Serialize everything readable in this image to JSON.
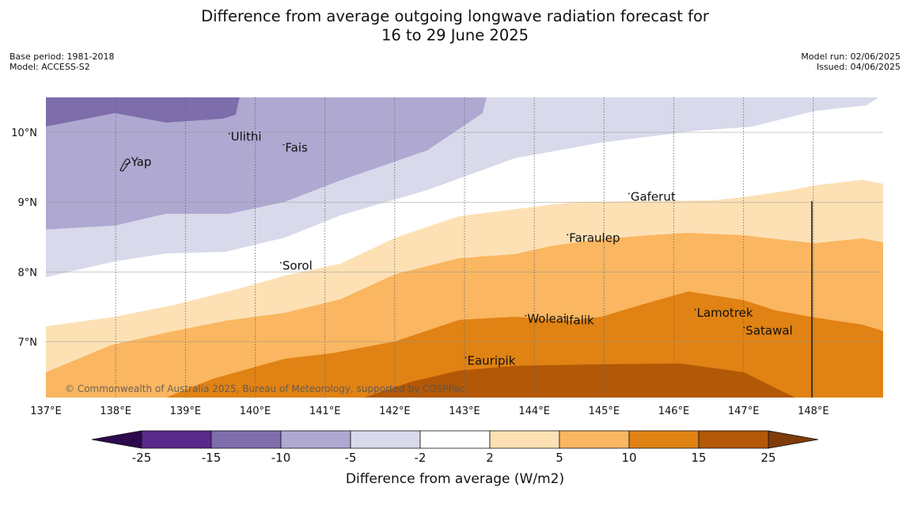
{
  "title": {
    "line1": "Difference from average outgoing longwave radiation forecast for",
    "line2": "16 to 29 June 2025"
  },
  "meta": {
    "base_period": "Base period: 1981-2018",
    "model": "Model: ACCESS-S2",
    "model_run": "Model run: 02/06/2025",
    "issued": "Issued: 04/06/2025"
  },
  "map": {
    "lat_range": [
      6.2,
      10.5
    ],
    "lon_range": [
      137.0,
      149.0
    ],
    "lon_ticks": [
      {
        "value": 137,
        "label": "137°E"
      },
      {
        "value": 138,
        "label": "138°E"
      },
      {
        "value": 139,
        "label": "139°E"
      },
      {
        "value": 140,
        "label": "140°E"
      },
      {
        "value": 141,
        "label": "141°E"
      },
      {
        "value": 142,
        "label": "142°E"
      },
      {
        "value": 143,
        "label": "143°E"
      },
      {
        "value": 144,
        "label": "144°E"
      },
      {
        "value": 145,
        "label": "145°E"
      },
      {
        "value": 146,
        "label": "146°E"
      },
      {
        "value": 147,
        "label": "147°E"
      },
      {
        "value": 148,
        "label": "148°E"
      }
    ],
    "lat_ticks": [
      {
        "value": 10,
        "label": "10°N"
      },
      {
        "value": 9,
        "label": "9°N"
      },
      {
        "value": 8,
        "label": "8°N"
      },
      {
        "value": 7,
        "label": "7°N"
      }
    ],
    "places": [
      {
        "name": "Yap",
        "lon": 138.22,
        "lat": 9.52
      },
      {
        "name": "Ulithi",
        "lon": 139.65,
        "lat": 9.88
      },
      {
        "name": "Fais",
        "lon": 140.43,
        "lat": 9.72
      },
      {
        "name": "Sorol",
        "lon": 140.39,
        "lat": 8.03
      },
      {
        "name": "Gaferut",
        "lon": 145.38,
        "lat": 9.02
      },
      {
        "name": "Faraulep",
        "lon": 144.5,
        "lat": 8.43
      },
      {
        "name": "Woleai",
        "lon": 143.9,
        "lat": 7.27
      },
      {
        "name": "Ifalik",
        "lon": 144.45,
        "lat": 7.25
      },
      {
        "name": "Lamotrek",
        "lon": 146.33,
        "lat": 7.36
      },
      {
        "name": "Satawal",
        "lon": 147.03,
        "lat": 7.1
      },
      {
        "name": "Eauripik",
        "lon": 143.04,
        "lat": 6.67
      }
    ],
    "credit": "© Commonwealth of Australia 2025, Bureau of Meteorology, supported by COSPPac"
  },
  "colorbar": {
    "title": "Difference from average (W/m2)",
    "tick_labels": [
      "-25",
      "-15",
      "-10",
      "-5",
      "-2",
      "2",
      "5",
      "10",
      "15",
      "25"
    ],
    "colors": {
      "below_min": "#2d0a4e",
      "bins": [
        "#5a2a8a",
        "#7e6dab",
        "#afa8d1",
        "#d8d9ea",
        "#ffffff",
        "#fde1b5",
        "#fab660",
        "#e08214",
        "#b35806"
      ],
      "above_max": "#7f3b08"
    }
  }
}
